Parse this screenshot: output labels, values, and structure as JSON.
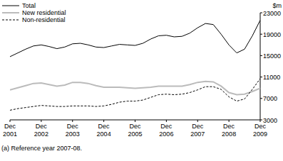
{
  "chart_data": {
    "type": "line",
    "y_label": "$m",
    "footnote": "(a) Reference year 2007-08.",
    "categories": [
      "Dec 2001",
      null,
      null,
      null,
      "Dec 2002",
      null,
      null,
      null,
      "Dec 2003",
      null,
      null,
      null,
      "Dec 2004",
      null,
      null,
      null,
      "Dec 2005",
      null,
      null,
      null,
      "Dec 2006",
      null,
      null,
      null,
      "Dec 2007",
      null,
      null,
      null,
      "Dec 2008",
      null,
      null,
      null,
      "Dec 2009"
    ],
    "series": [
      {
        "name": "Total",
        "color": "#000000",
        "line_style": "solid",
        "values": [
          14800,
          15500,
          16200,
          16800,
          17000,
          16700,
          16300,
          16600,
          17200,
          17300,
          17000,
          16600,
          16500,
          16800,
          17100,
          17000,
          16900,
          17300,
          18100,
          18700,
          18800,
          18500,
          18600,
          19200,
          20200,
          21000,
          20800,
          19000,
          17000,
          15500,
          16200,
          18700,
          21600
        ]
      },
      {
        "name": "New residential",
        "color": "#bbbbbb",
        "line_style": "solid",
        "values": [
          8600,
          9000,
          9400,
          9800,
          9900,
          9600,
          9300,
          9500,
          10000,
          10000,
          9800,
          9400,
          9100,
          9100,
          9100,
          9000,
          8900,
          9000,
          9100,
          9300,
          9300,
          9300,
          9300,
          9600,
          10000,
          10200,
          10100,
          9300,
          8100,
          7700,
          7800,
          8300,
          8900
        ]
      },
      {
        "name": "Non-residential",
        "color": "#000000",
        "line_style": "dashed",
        "values": [
          4800,
          5100,
          5300,
          5500,
          5700,
          5600,
          5500,
          5500,
          5600,
          5600,
          5600,
          5500,
          5600,
          5900,
          6300,
          6500,
          6500,
          6700,
          7200,
          7700,
          7800,
          7700,
          7800,
          8100,
          8600,
          9200,
          9200,
          8700,
          7300,
          6500,
          6900,
          8700,
          10700
        ]
      }
    ],
    "ylim": [
      3000,
      23000
    ],
    "yticks": [
      3000,
      7000,
      11000,
      15000,
      19000,
      23000
    ],
    "legend": "upper left",
    "grid": false
  }
}
